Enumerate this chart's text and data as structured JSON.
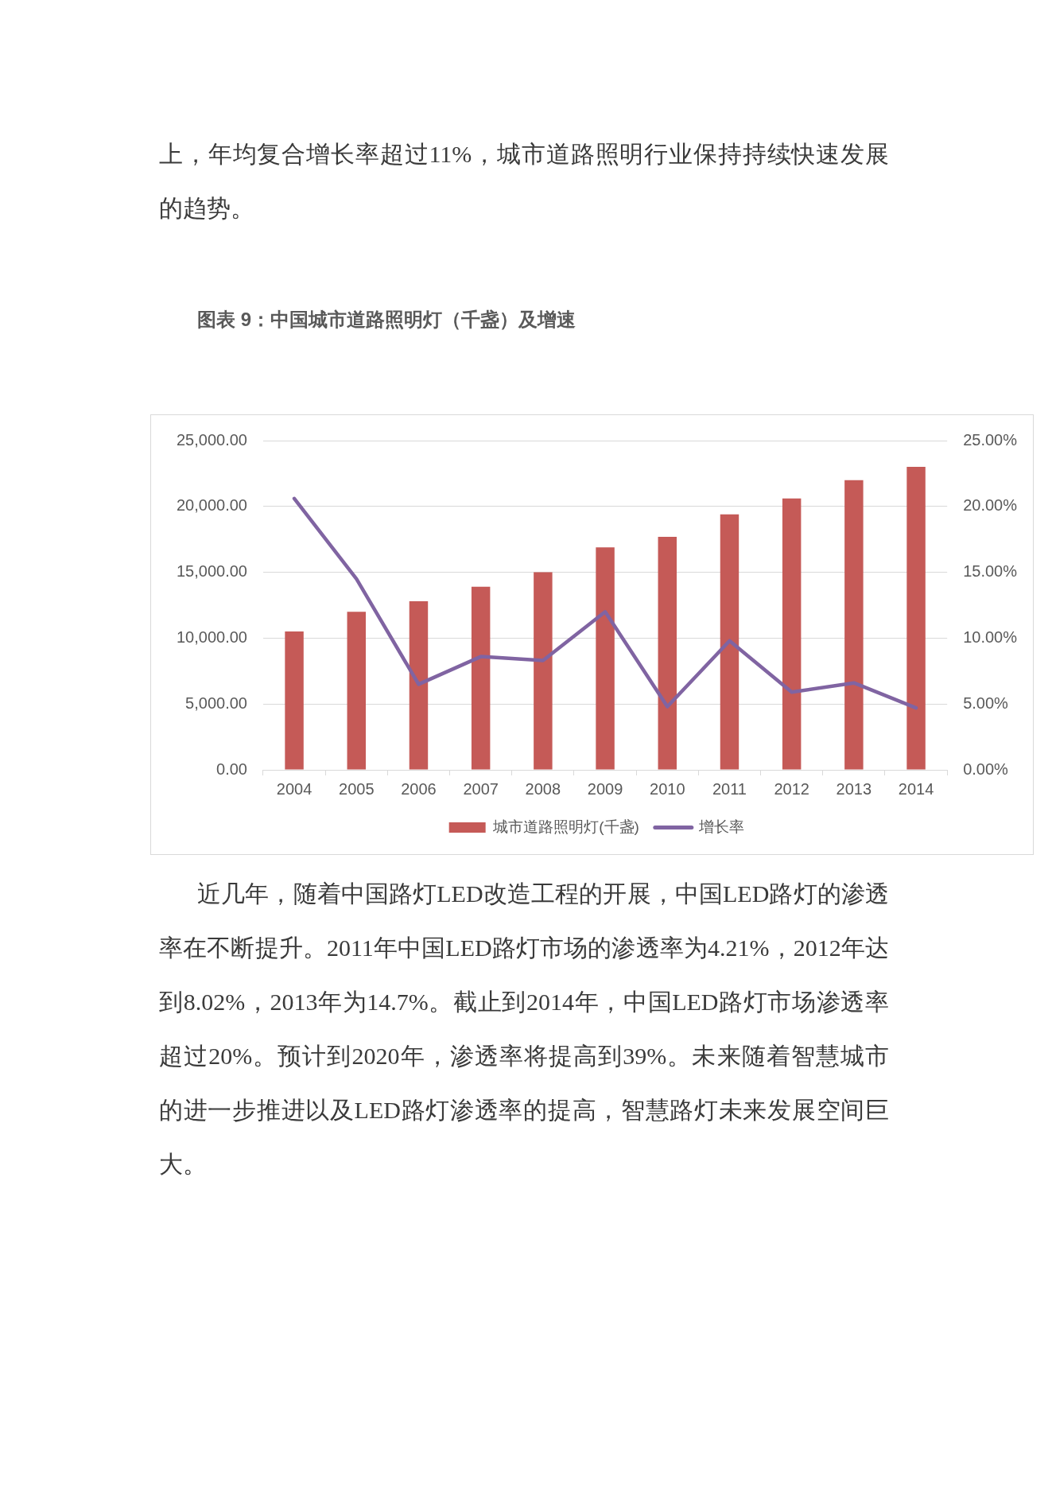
{
  "chart_data": {
    "type": "bar",
    "title": "图表 9：中国城市道路照明灯（千盏）及增速",
    "categories": [
      "2004",
      "2005",
      "2006",
      "2007",
      "2008",
      "2009",
      "2010",
      "2011",
      "2012",
      "2013",
      "2014"
    ],
    "series": [
      {
        "name": "城市道路照明灯(千盏)",
        "color": "#c55a57",
        "values": [
          10500,
          12000,
          12800,
          13900,
          15000,
          16900,
          17700,
          19400,
          20600,
          22000,
          23000
        ]
      },
      {
        "name": "增长率",
        "type": "line",
        "axis": "y2",
        "color": "#8064a2",
        "values": [
          20.6,
          14.5,
          6.5,
          8.6,
          8.3,
          12.0,
          4.8,
          9.8,
          5.9,
          6.6,
          4.7
        ]
      }
    ],
    "ylim": [
      0,
      25000
    ],
    "yticks": [
      {
        "value": 0,
        "label": "0.00"
      },
      {
        "value": 5000,
        "label": "5,000.00"
      },
      {
        "value": 10000,
        "label": "10,000.00"
      },
      {
        "value": 15000,
        "label": "15,000.00"
      },
      {
        "value": 20000,
        "label": "20,000.00"
      },
      {
        "value": 25000,
        "label": "25,000.00"
      }
    ],
    "y2lim": [
      0,
      25
    ],
    "y2ticks": [
      {
        "value": 0,
        "label": "0.00%"
      },
      {
        "value": 5,
        "label": "5.00%"
      },
      {
        "value": 10,
        "label": "10.00%"
      },
      {
        "value": 15,
        "label": "15.00%"
      },
      {
        "value": 20,
        "label": "20.00%"
      },
      {
        "value": 25,
        "label": "25.00%"
      }
    ],
    "grid": "y",
    "legend": "bottom",
    "marker": "none",
    "annotations": [
      "上，年均复合增长率超过11%，城市道路照明行业保持持续快速发展的趋势。",
      "近几年，随着中国路灯LED改造工程的开展，中国LED路灯的渗透率在不断提升。2011年中国LED路灯市场的渗透率为4.21%，2012年达到8.02%，2013年为14.7%。截止到2014年，中国LED路灯市场渗透率超过20%。预计到2020年，渗透率将提高到39%。未来随着智慧城市的进一步推进以及LED路灯渗透率的提高，智慧路灯未来发展空间巨大。"
    ]
  }
}
